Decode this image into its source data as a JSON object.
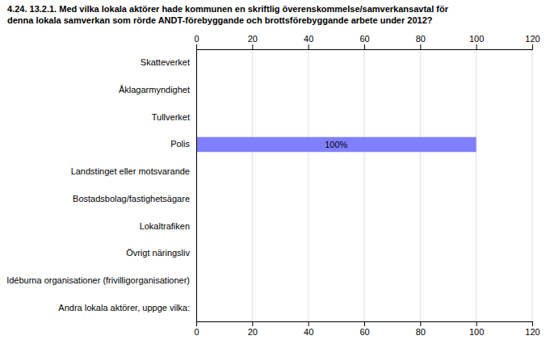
{
  "chart_data": {
    "type": "bar",
    "orientation": "horizontal",
    "title": [
      "4.24. 13.2.1. Med vilka lokala aktörer hade kommunen en skriftlig överenskommelse/samverkansavtal för",
      "denna lokala samverkan som rörde ANDT-förebyggande och brottsförebyggande arbete under 2012?"
    ],
    "categories": [
      "Skatteverket",
      "Åklagarmyndighet",
      "Tullverket",
      "Polis",
      "Landstinget eller motsvarande",
      "Bostadsbolag/fastighetsägare",
      "Lokaltrafiken",
      "Övrigt näringsliv",
      "Idéburna organisationer (frivilligorganisationer)",
      "Andra lokala aktörer, uppge vilka:"
    ],
    "values": [
      0,
      0,
      0,
      100,
      0,
      0,
      0,
      0,
      0,
      0
    ],
    "value_labels": [
      null,
      null,
      null,
      "100%",
      null,
      null,
      null,
      null,
      null,
      null
    ],
    "data_labels": true,
    "colors": [
      "#c8c8dc",
      "#c8c8dc",
      "#c8c8dc",
      "#8080ff",
      "#c8c8dc",
      "#c8c8dc",
      "#c8c8dc",
      "#c8c8dc",
      "#c8c8dc",
      "#c8c8dc"
    ],
    "xlim": [
      0,
      120
    ],
    "xticks": [
      0,
      20,
      40,
      60,
      80,
      100,
      120
    ],
    "grid": true
  }
}
